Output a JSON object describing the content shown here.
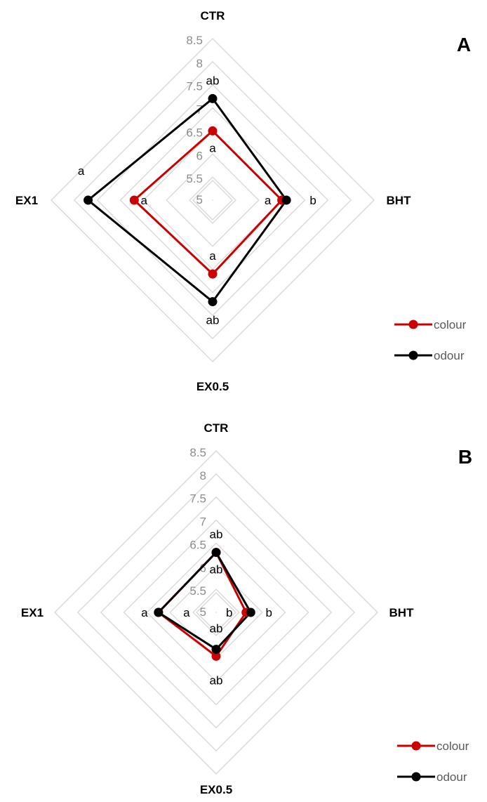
{
  "chart_data": [
    {
      "type": "radar",
      "panel_label": "A",
      "axes": [
        "CTR",
        "BHT",
        "EX0.5",
        "EX1"
      ],
      "rlim": [
        5,
        8.5
      ],
      "tick_values": [
        5,
        5.5,
        6,
        6.5,
        7,
        7.5,
        8,
        8.5
      ],
      "tick_labels": [
        "5",
        "5.5",
        "6",
        "6.5",
        "7",
        "7.5",
        "8",
        "8.5"
      ],
      "grid": true,
      "legend_position": "bottom-right",
      "series": [
        {
          "name": "colour",
          "color": "#cc0000",
          "values": [
            6.5,
            6.5,
            6.6,
            6.7
          ],
          "annotations": [
            "a",
            "a",
            "a",
            "a"
          ]
        },
        {
          "name": "odour",
          "color": "#000000",
          "values": [
            7.2,
            6.6,
            7.2,
            7.7
          ],
          "annotations": [
            "ab",
            "b",
            "ab",
            "a"
          ]
        }
      ]
    },
    {
      "type": "radar",
      "panel_label": "B",
      "axes": [
        "CTR",
        "BHT",
        "EX0.5",
        "EX1"
      ],
      "rlim": [
        5,
        8.5
      ],
      "tick_values": [
        5,
        5.5,
        6,
        6.5,
        7,
        7.5,
        8,
        8.5
      ],
      "tick_labels": [
        "5",
        "5.5",
        "6",
        "6.5",
        "7",
        "7.5",
        "8",
        "8.5"
      ],
      "grid": true,
      "legend_position": "bottom-right",
      "series": [
        {
          "name": "colour",
          "color": "#cc0000",
          "values": [
            6.3,
            5.65,
            5.95,
            6.25
          ],
          "annotations": [
            "ab",
            "b",
            "ab",
            "a"
          ]
        },
        {
          "name": "odour",
          "color": "#000000",
          "values": [
            6.3,
            5.75,
            5.8,
            6.25
          ],
          "annotations": [
            "ab",
            "b",
            "ab",
            "a"
          ]
        }
      ]
    }
  ]
}
